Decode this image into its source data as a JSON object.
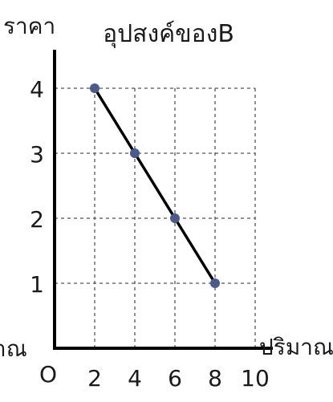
{
  "chart_data": {
    "type": "line",
    "title": "อุปสงค์ของB",
    "ylabel": "ราคา",
    "xlabel": "ปริมาณ",
    "left_cutoff_label": "าณ",
    "origin_label": "O",
    "x_ticks": [
      2,
      4,
      6,
      8,
      10
    ],
    "y_ticks": [
      1,
      2,
      3,
      4
    ],
    "xlim": [
      0,
      10
    ],
    "ylim": [
      0,
      4
    ],
    "grid": true,
    "grid_style": "dashed",
    "series": [
      {
        "x": [
          2,
          4,
          6,
          8
        ],
        "y": [
          4,
          3,
          2,
          1
        ]
      }
    ],
    "colors": {
      "line": "#000000",
      "marker": "#4a5a8a",
      "grid": "#555555",
      "axis": "#000000"
    }
  }
}
